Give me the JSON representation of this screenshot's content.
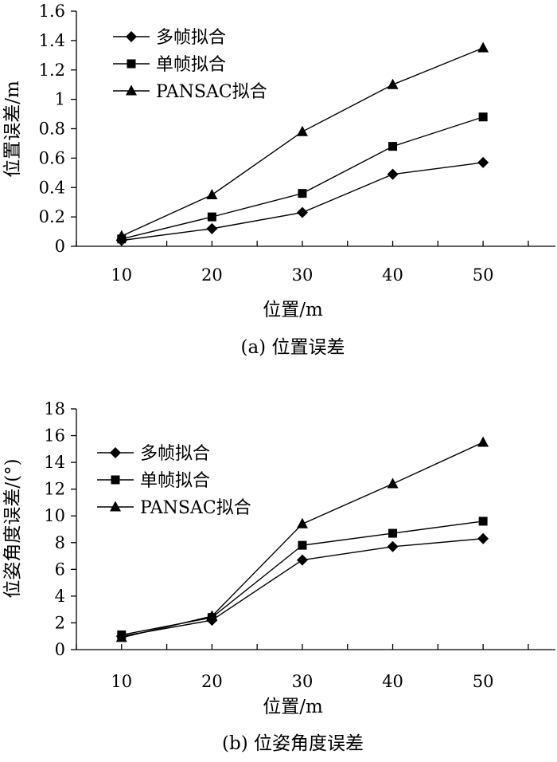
{
  "chart_data": [
    {
      "type": "line",
      "title": "",
      "caption": "(a) 位置误差",
      "xlabel": "位置/m",
      "ylabel": "位置误差/m",
      "x": [
        10,
        20,
        30,
        40,
        50
      ],
      "xlim": [
        5,
        58
      ],
      "ylim": [
        0,
        1.6
      ],
      "yticks": [
        "0",
        "0.2",
        "0.4",
        "0.6",
        "0.8",
        "1",
        "1.2",
        "1.4",
        "1.6"
      ],
      "xticks": [
        "10",
        "20",
        "30",
        "40",
        "50"
      ],
      "legend_position": "top-left",
      "series": [
        {
          "name": "多帧拟合",
          "marker": "diamond",
          "values": [
            0.04,
            0.12,
            0.23,
            0.49,
            0.57
          ]
        },
        {
          "name": "单帧拟合",
          "marker": "square",
          "values": [
            0.05,
            0.2,
            0.36,
            0.68,
            0.88
          ]
        },
        {
          "name": "PANSAC拟合",
          "marker": "triangle",
          "values": [
            0.07,
            0.35,
            0.78,
            1.1,
            1.35
          ]
        }
      ]
    },
    {
      "type": "line",
      "title": "",
      "caption": "(b) 位姿角度误差",
      "xlabel": "位置/m",
      "ylabel": "位姿角度误差/(°)",
      "x": [
        10,
        20,
        30,
        40,
        50
      ],
      "xlim": [
        5,
        58
      ],
      "ylim": [
        0,
        18
      ],
      "yticks": [
        "0",
        "2",
        "4",
        "6",
        "8",
        "10",
        "12",
        "14",
        "16",
        "18"
      ],
      "xticks": [
        "10",
        "20",
        "30",
        "40",
        "50"
      ],
      "legend_position": "top-left",
      "series": [
        {
          "name": "多帧拟合",
          "marker": "diamond",
          "values": [
            1.0,
            2.2,
            6.7,
            7.7,
            8.3
          ]
        },
        {
          "name": "单帧拟合",
          "marker": "square",
          "values": [
            1.1,
            2.4,
            7.8,
            8.7,
            9.6
          ]
        },
        {
          "name": "PANSAC拟合",
          "marker": "triangle",
          "values": [
            0.9,
            2.5,
            9.4,
            12.4,
            15.5
          ]
        }
      ]
    }
  ]
}
